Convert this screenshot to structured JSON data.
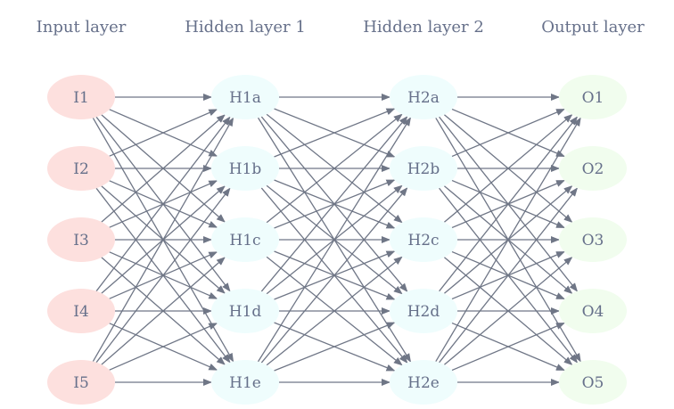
{
  "layers": [
    {
      "title": "Input layer",
      "fill": "#fde0de",
      "nodes": [
        "I1",
        "I2",
        "I3",
        "I4",
        "I5"
      ]
    },
    {
      "title": "Hidden layer 1",
      "fill": "#effdfd",
      "nodes": [
        "H1a",
        "H1b",
        "H1c",
        "H1d",
        "H1e"
      ]
    },
    {
      "title": "Hidden layer 2",
      "fill": "#effdfd",
      "nodes": [
        "H2a",
        "H2b",
        "H2c",
        "H2d",
        "H2e"
      ]
    },
    {
      "title": "Output layer",
      "fill": "#f1fdee",
      "nodes": [
        "O1",
        "O2",
        "O3",
        "O4",
        "O5"
      ]
    }
  ],
  "connectivity": "fully-connected",
  "colors": {
    "edge": "#6f7686",
    "text": "#66708a"
  }
}
